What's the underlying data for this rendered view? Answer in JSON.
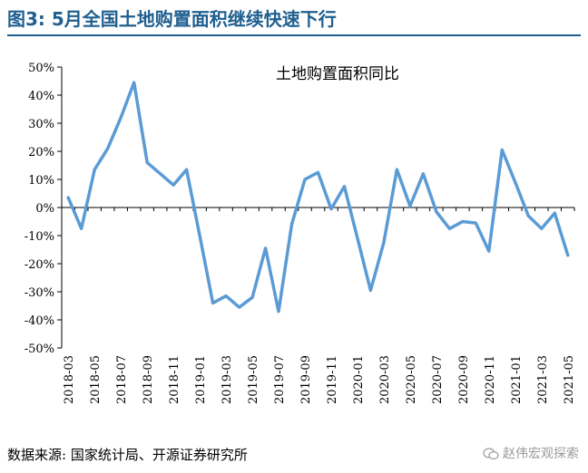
{
  "figure": {
    "title": "图3:  5月全国土地购置面积继续快速下行",
    "source": "数据来源: 国家统计局、开源证券研究所",
    "watermark": "赵伟宏观探索",
    "watermark_icon": "wechat-icon",
    "accent_color": "#1f5f8f"
  },
  "chart_data": {
    "type": "line",
    "title": "土地购置面积同比",
    "xlabel": "",
    "ylabel": "",
    "ylim": [
      -50,
      50
    ],
    "yticks": [
      50,
      40,
      30,
      20,
      10,
      0,
      -10,
      -20,
      -30,
      -40,
      -50
    ],
    "ytick_labels": [
      "50%",
      "40%",
      "30%",
      "20%",
      "10%",
      "0%",
      "-10%",
      "-20%",
      "-30%",
      "-40%",
      "-50%"
    ],
    "y_unit": "%",
    "grid": false,
    "legend": "none",
    "line_color": "#5b9bd5",
    "x": [
      "2018-03",
      "2018-04",
      "2018-05",
      "2018-06",
      "2018-07",
      "2018-08",
      "2018-09",
      "2018-10",
      "2018-11",
      "2018-12",
      "2019-01",
      "2019-02",
      "2019-03",
      "2019-04",
      "2019-05",
      "2019-06",
      "2019-07",
      "2019-08",
      "2019-09",
      "2019-10",
      "2019-11",
      "2019-12",
      "2020-01",
      "2020-02",
      "2020-03",
      "2020-04",
      "2020-05",
      "2020-06",
      "2020-07",
      "2020-08",
      "2020-09",
      "2020-10",
      "2020-11",
      "2020-12",
      "2021-01",
      "2021-02",
      "2021-03",
      "2021-04",
      "2021-05"
    ],
    "xtick_labels": [
      "2018-03",
      "2018-05",
      "2018-07",
      "2018-09",
      "2018-11",
      "2019-01",
      "2019-03",
      "2019-05",
      "2019-07",
      "2019-09",
      "2019-11",
      "2020-01",
      "2020-03",
      "2020-05",
      "2020-07",
      "2020-09",
      "2020-11",
      "2021-01",
      "2021-03",
      "2021-05"
    ],
    "series": [
      {
        "values": [
          3.5,
          -7.5,
          13.5,
          21,
          32,
          44.5,
          16,
          12,
          8,
          13.5,
          -10,
          -34,
          -31.5,
          -35.5,
          -32,
          -14.5,
          -37,
          -6,
          10,
          12.5,
          -0.5,
          7.5,
          -11,
          -29.5,
          -12.5,
          13.5,
          0.5,
          12,
          -1.5,
          -7.5,
          -5,
          -5.5,
          -15.5,
          20.5,
          9,
          -3,
          -7.5,
          -2,
          -17
        ]
      }
    ]
  }
}
